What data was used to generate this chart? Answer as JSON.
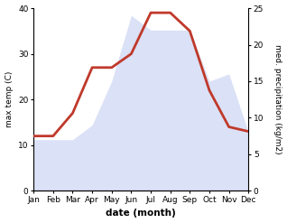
{
  "months": [
    "Jan",
    "Feb",
    "Mar",
    "Apr",
    "May",
    "Jun",
    "Jul",
    "Aug",
    "Sep",
    "Oct",
    "Nov",
    "Dec"
  ],
  "temp": [
    12,
    12,
    17,
    27,
    27,
    30,
    39,
    39,
    35,
    22,
    14,
    13
  ],
  "precip": [
    7,
    7,
    7,
    9,
    15,
    24,
    22,
    22,
    22,
    15,
    16,
    8
  ],
  "temp_color": "#c0392b",
  "precip_color_fill": "#b8c4ee",
  "title": "",
  "xlabel": "date (month)",
  "ylabel_left": "max temp (C)",
  "ylabel_right": "med. precipitation (kg/m2)",
  "ylim_left": [
    0,
    40
  ],
  "ylim_right": [
    0,
    25
  ],
  "yticks_left": [
    0,
    10,
    20,
    30,
    40
  ],
  "yticks_right": [
    0,
    5,
    10,
    15,
    20,
    25
  ],
  "bg_color": "#ffffff",
  "temp_linewidth": 2.0,
  "precip_alpha": 0.5
}
